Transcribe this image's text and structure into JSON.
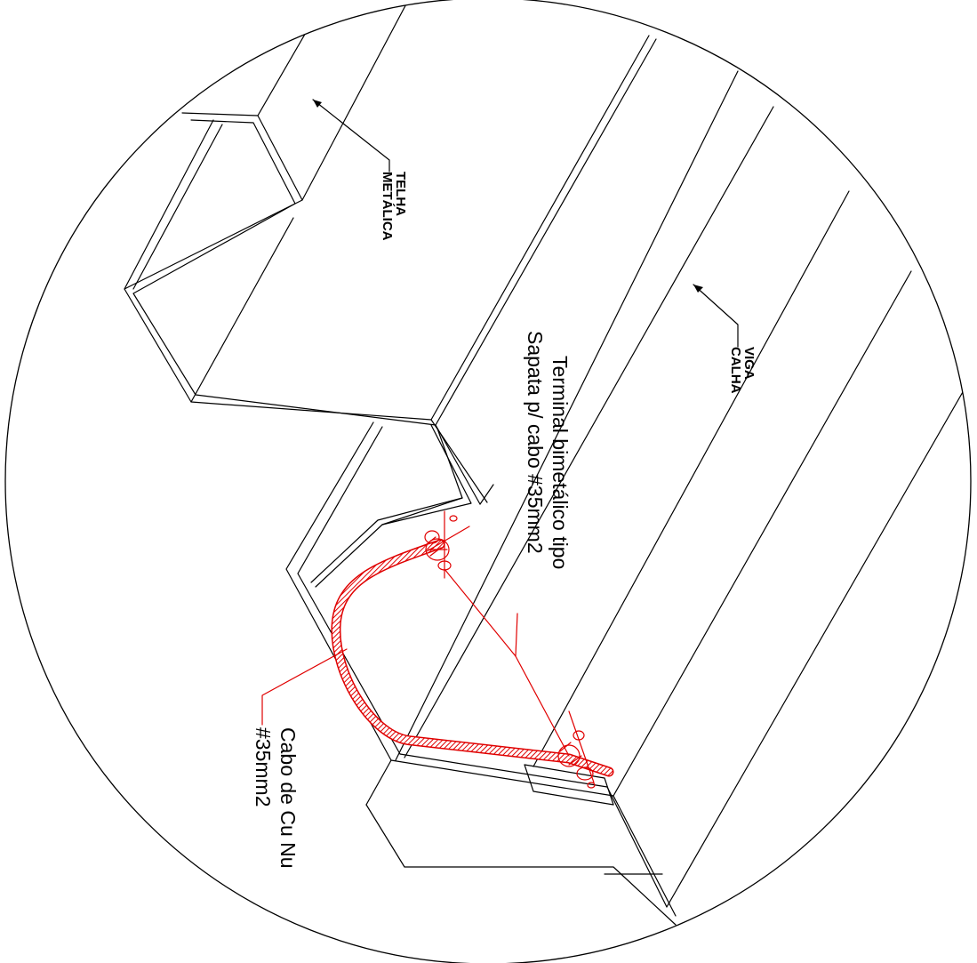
{
  "labels": {
    "telha": [
      "TELHA",
      "METÁLICA"
    ],
    "viga": [
      "VIGA",
      "CALHA"
    ],
    "terminal": [
      "Terminal bimetálico tipo",
      "Sapata p/ cabo #35mm2"
    ],
    "cabo": [
      "Cabo de Cu Nu",
      "#35mm2"
    ]
  },
  "colors": {
    "linework": "#000000",
    "cable": "#e00000",
    "background": "#ffffff"
  }
}
